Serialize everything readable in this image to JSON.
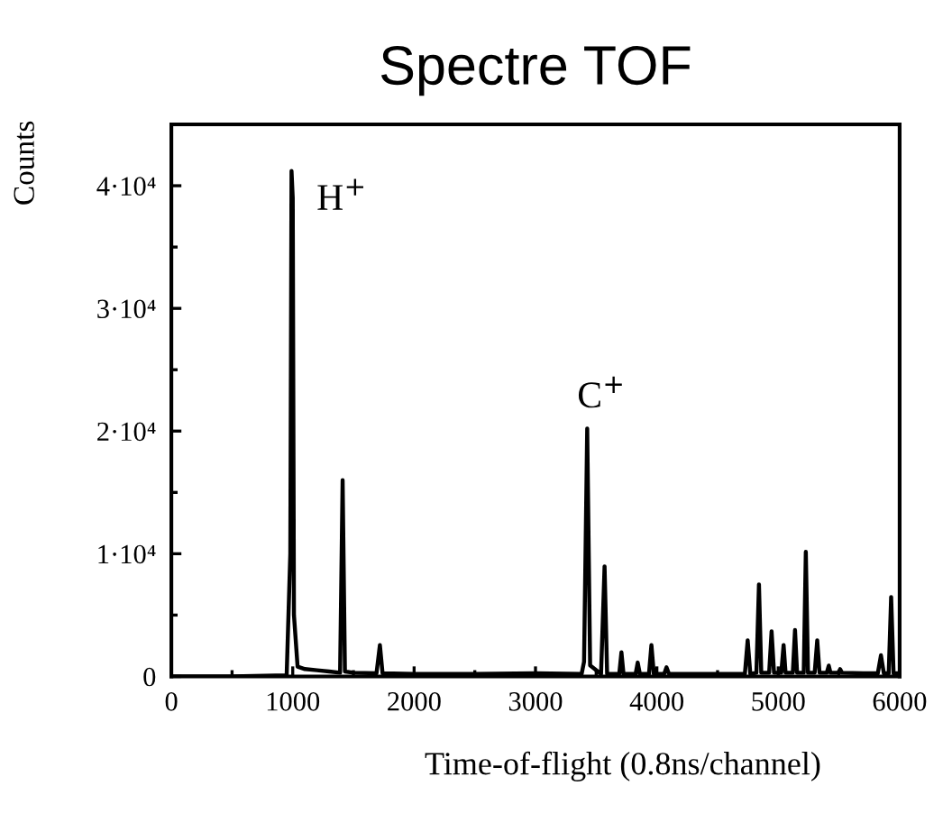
{
  "chart_data": {
    "type": "line",
    "title": "Spectre TOF",
    "xlabel": "Time-of-flight (0.8ns/channel)",
    "ylabel": "Counts",
    "series": [
      {
        "color": "#000000",
        "x": [
          0,
          500,
          950,
          980,
          990,
          1000,
          1010,
          1040,
          1100,
          1200,
          1300,
          1390,
          1411,
          1430,
          1500,
          1690,
          1718,
          1740,
          2000,
          2500,
          3000,
          3380,
          3400,
          3426,
          3450,
          3540,
          3569,
          3590,
          3690,
          3708,
          3725,
          3825,
          3842,
          3860,
          3935,
          3955,
          3975,
          4060,
          4079,
          4100,
          4500,
          4725,
          4748,
          4770,
          4820,
          4841,
          4860,
          4925,
          4945,
          4965,
          5025,
          5044,
          5060,
          5120,
          5138,
          5155,
          5210,
          5227,
          5245,
          5300,
          5321,
          5340,
          5400,
          5416,
          5430,
          5495,
          5510,
          5525,
          5700,
          5820,
          5846,
          5870,
          5910,
          5930,
          5950,
          6000
        ],
        "values": [
          0,
          0,
          100,
          10000,
          41200,
          39000,
          5000,
          800,
          600,
          500,
          400,
          300,
          16000,
          400,
          300,
          250,
          2550,
          250,
          200,
          200,
          250,
          200,
          1200,
          20200,
          900,
          200,
          8970,
          200,
          200,
          1960,
          200,
          200,
          1130,
          200,
          200,
          2550,
          200,
          200,
          740,
          200,
          200,
          200,
          2940,
          200,
          300,
          7500,
          300,
          300,
          3680,
          300,
          300,
          2550,
          300,
          300,
          3780,
          300,
          300,
          10150,
          300,
          300,
          2940,
          300,
          300,
          880,
          300,
          300,
          590,
          300,
          250,
          250,
          1720,
          250,
          250,
          6470,
          250,
          250
        ]
      }
    ],
    "xlim": [
      0,
      6000
    ],
    "xticks": [
      0,
      {
        "value": 500,
        "label": null
      },
      1000,
      {
        "value": 1500,
        "label": null
      },
      2000,
      {
        "value": 2500,
        "label": null
      },
      3000,
      {
        "value": 3500,
        "label": null
      },
      4000,
      {
        "value": 4500,
        "label": null
      },
      5000,
      {
        "value": 5500,
        "label": null
      },
      6000
    ],
    "ylim": [
      0,
      45000
    ],
    "yticks": [
      0,
      {
        "value": 5000,
        "label": null
      },
      {
        "value": 10000,
        "label": "1·10⁴"
      },
      {
        "value": 15000,
        "label": null
      },
      {
        "value": 20000,
        "label": "2·10⁴"
      },
      {
        "value": 25000,
        "label": null
      },
      {
        "value": 30000,
        "label": "3·10⁴"
      },
      {
        "value": 35000,
        "label": null
      },
      {
        "value": 40000,
        "label": "4·10⁴"
      }
    ],
    "annotations": [
      {
        "text": "H$^{+}$",
        "x": 990,
        "y": 41200
      },
      {
        "text": "C$^{+}$",
        "x": 3426,
        "y": 20200
      }
    ],
    "grid": false,
    "legend": false,
    "marker": "none",
    "line_style": "solid"
  }
}
